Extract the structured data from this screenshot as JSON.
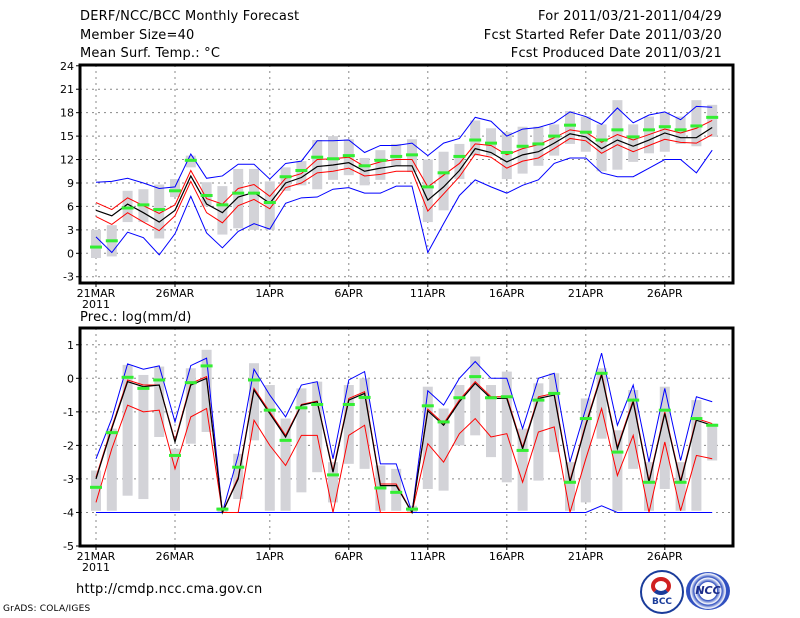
{
  "header": {
    "title": "DERF/NCC/BCC Monthly Forecast",
    "member_size": "Member Size=40",
    "variable": "Mean Surf. Temp.: °C",
    "period": "For 2011/03/21-2011/04/29",
    "refer_date": "Fcst Started Refer Date 2011/03/20",
    "produced_date": "Fcst Produced Date 2011/03/21"
  },
  "footer": {
    "url": "http://cmdp.ncc.cma.gov.cn",
    "credit": "GrADS: COLA/IGES",
    "logo_left": "BCC",
    "logo_right": "NCC"
  },
  "colors": {
    "mean": "#000000",
    "spread": "#ff0000",
    "extreme": "#0000ff",
    "obs": "#33ee33",
    "box": "#d3d3d8"
  },
  "chart_data": [
    {
      "type": "line",
      "title": "Mean Surf. Temp.: °C",
      "ylabel": "°C",
      "ylim": [
        -3.8,
        24.1
      ],
      "yticks": [
        "-3",
        "0",
        "3",
        "6",
        "9",
        "12",
        "15",
        "18",
        "21",
        "24"
      ],
      "xticks": [
        {
          "day": 0,
          "label": "21MAR",
          "year": "2011"
        },
        {
          "day": 5,
          "label": "26MAR"
        },
        {
          "day": 11,
          "label": "1APR"
        },
        {
          "day": 16,
          "label": "6APR"
        },
        {
          "day": 21,
          "label": "11APR"
        },
        {
          "day": 26,
          "label": "16APR"
        },
        {
          "day": 31,
          "label": "21APR"
        },
        {
          "day": 36,
          "label": "26APR"
        }
      ],
      "grid": true,
      "mean": [
        5.5,
        4.8,
        6.3,
        5.2,
        4.0,
        5.5,
        9.9,
        6.3,
        5.2,
        7.2,
        7.8,
        6.4,
        9.0,
        9.7,
        11.1,
        11.3,
        11.6,
        10.5,
        10.9,
        11.2,
        11.2,
        6.8,
        8.5,
        10.6,
        13.4,
        12.9,
        11.7,
        12.6,
        13.0,
        14.1,
        15.3,
        14.9,
        13.4,
        14.5,
        13.7,
        14.5,
        15.4,
        14.8,
        14.8,
        16.1
      ],
      "spread_upper": [
        6.5,
        5.6,
        7.1,
        6.1,
        5.1,
        6.2,
        10.6,
        7.0,
        6.3,
        8.3,
        8.8,
        7.3,
        9.6,
        10.2,
        12.0,
        12.1,
        12.3,
        11.1,
        11.7,
        12.0,
        12.0,
        8.5,
        10.0,
        11.5,
        14.0,
        13.8,
        12.6,
        13.4,
        13.9,
        14.8,
        15.8,
        15.5,
        14.2,
        15.2,
        14.5,
        15.2,
        15.9,
        15.4,
        16.0,
        17.0
      ],
      "spread_lower": [
        4.7,
        3.7,
        5.2,
        4.0,
        2.9,
        4.8,
        9.2,
        5.2,
        3.9,
        6.1,
        6.9,
        5.7,
        8.4,
        9.0,
        10.3,
        10.5,
        10.9,
        9.9,
        10.1,
        10.5,
        10.5,
        5.4,
        7.6,
        9.8,
        12.7,
        12.3,
        10.9,
        11.8,
        12.2,
        13.4,
        14.7,
        14.4,
        12.8,
        13.9,
        13.0,
        13.8,
        14.6,
        14.2,
        14.1,
        15.2
      ],
      "max": [
        9.1,
        9.2,
        9.6,
        9.0,
        8.3,
        8.5,
        12.7,
        9.6,
        9.9,
        11.4,
        11.4,
        9.5,
        11.5,
        11.8,
        14.4,
        14.4,
        14.5,
        12.9,
        13.8,
        13.8,
        14.1,
        12.5,
        14.1,
        14.7,
        17.4,
        16.9,
        15.0,
        15.9,
        16.1,
        16.7,
        18.1,
        17.5,
        16.5,
        18.6,
        16.7,
        17.7,
        18.1,
        17.1,
        18.8,
        18.7
      ],
      "min": [
        2.1,
        0.1,
        2.7,
        2.0,
        -0.2,
        2.5,
        7.3,
        2.6,
        0.7,
        2.8,
        3.8,
        3.1,
        6.4,
        7.1,
        7.2,
        8.2,
        8.4,
        7.7,
        7.7,
        8.6,
        8.6,
        0.1,
        3.8,
        7.4,
        9.4,
        8.5,
        7.7,
        8.7,
        9.4,
        11.5,
        12.2,
        12.2,
        10.3,
        9.8,
        9.8,
        10.9,
        12.0,
        12.0,
        10.3,
        13.2
      ],
      "observed": [
        0.8,
        1.6,
        5.8,
        6.2,
        5.6,
        8.0,
        11.9,
        7.4,
        6.2,
        7.7,
        7.7,
        6.5,
        9.8,
        10.6,
        12.3,
        12.1,
        12.5,
        11.2,
        11.9,
        12.4,
        12.6,
        8.5,
        10.3,
        12.4,
        14.5,
        14.1,
        12.9,
        13.7,
        14.0,
        15.0,
        16.4,
        15.5,
        14.5,
        15.8,
        14.9,
        15.8,
        16.2,
        15.8,
        16.3,
        17.4
      ],
      "box_low": [
        -0.6,
        -0.4,
        4.0,
        4.0,
        1.9,
        7.2,
        11.0,
        6.0,
        2.4,
        3.2,
        3.0,
        3.0,
        8.0,
        8.7,
        8.2,
        9.4,
        10.0,
        8.7,
        9.4,
        11.2,
        10.4,
        4.0,
        5.5,
        9.5,
        12.5,
        12.5,
        9.5,
        10.2,
        11.2,
        12.5,
        14.0,
        13.0,
        10.5,
        10.7,
        11.7,
        12.8,
        13.0,
        14.0,
        13.7,
        14.9
      ],
      "box_high": [
        3.0,
        3.6,
        8.0,
        8.2,
        8.8,
        9.5,
        12.5,
        9.1,
        8.6,
        10.8,
        10.8,
        9.2,
        11.0,
        11.8,
        14.5,
        15.0,
        14.6,
        12.2,
        13.2,
        14.0,
        14.6,
        12.0,
        13.0,
        14.0,
        17.0,
        16.0,
        15.5,
        16.2,
        16.2,
        16.5,
        18.2,
        17.5,
        16.5,
        19.6,
        16.5,
        17.5,
        18.0,
        17.5,
        19.6,
        19.0
      ]
    },
    {
      "type": "line",
      "title": "Prec.: log(mm/d)",
      "ylabel": "log(mm/d)",
      "ylim": [
        -5,
        1.5
      ],
      "yticks": [
        "-5",
        "-4",
        "-3",
        "-2",
        "-1",
        "0",
        "1"
      ],
      "xticks": [
        {
          "day": 0,
          "label": "21MAR",
          "year": "2011"
        },
        {
          "day": 5,
          "label": "26MAR"
        },
        {
          "day": 11,
          "label": "1APR"
        },
        {
          "day": 16,
          "label": "6APR"
        },
        {
          "day": 21,
          "label": "11APR"
        },
        {
          "day": 26,
          "label": "16APR"
        },
        {
          "day": 31,
          "label": "21APR"
        },
        {
          "day": 36,
          "label": "26APR"
        }
      ],
      "grid": true,
      "mean": [
        -3.0,
        -1.5,
        -0.1,
        -0.25,
        -0.2,
        -1.9,
        -0.2,
        0.0,
        -4.0,
        -3.0,
        -0.35,
        -1.05,
        -1.75,
        -0.8,
        -0.7,
        -2.8,
        -0.65,
        -0.45,
        -3.2,
        -3.2,
        -4.0,
        -0.97,
        -1.4,
        -0.7,
        -0.15,
        -0.6,
        -0.6,
        -2.1,
        -0.6,
        -0.5,
        -3.1,
        -1.4,
        0.1,
        -2.1,
        -0.7,
        -3.1,
        -1.05,
        -3.1,
        -1.25,
        -1.4
      ],
      "spread_upper": [
        -2.95,
        -1.45,
        -0.05,
        -0.2,
        -0.2,
        -1.85,
        -0.15,
        0.05,
        -4.0,
        -2.95,
        -0.3,
        -1.0,
        -1.7,
        -0.78,
        -0.68,
        -2.75,
        -0.6,
        -0.4,
        -3.15,
        -3.15,
        -4.0,
        -0.92,
        -1.35,
        -0.65,
        -0.1,
        -0.55,
        -0.55,
        -2.05,
        -0.55,
        -0.45,
        -3.05,
        -1.35,
        0.15,
        -2.05,
        -0.65,
        -3.05,
        -1.0,
        -3.05,
        -1.2,
        -1.35
      ],
      "spread_lower": [
        -3.7,
        -2.1,
        -0.8,
        -1.0,
        -0.95,
        -2.7,
        -1.15,
        -0.9,
        -4.0,
        -4.0,
        -1.25,
        -2.0,
        -2.6,
        -1.7,
        -1.7,
        -4.0,
        -1.7,
        -1.4,
        -4.0,
        -4.0,
        -4.0,
        -1.95,
        -2.5,
        -1.65,
        -1.2,
        -1.75,
        -1.65,
        -3.1,
        -1.6,
        -1.45,
        -4.0,
        -2.4,
        -0.9,
        -2.9,
        -1.7,
        -4.0,
        -1.9,
        -3.95,
        -2.3,
        -2.4
      ],
      "max": [
        -2.4,
        -1.2,
        0.43,
        0.27,
        0.37,
        -1.3,
        0.38,
        0.6,
        -4.0,
        -2.3,
        0.27,
        -0.5,
        -1.15,
        -0.2,
        -0.1,
        -2.4,
        -0.05,
        0.2,
        -2.55,
        -2.55,
        -4.0,
        -0.37,
        -0.8,
        0.0,
        0.5,
        0.0,
        0.0,
        -1.5,
        0.0,
        0.15,
        -2.5,
        -0.9,
        0.75,
        -1.4,
        -0.2,
        -2.5,
        -0.3,
        -2.45,
        -0.55,
        -0.7
      ],
      "min": [
        -4,
        -4,
        -4,
        -4,
        -4,
        -4,
        -4,
        -4,
        -4,
        -4,
        -4,
        -4,
        -4,
        -4,
        -4,
        -4,
        -4,
        -4,
        -4,
        -4,
        -4,
        -4,
        -4,
        -4,
        -4,
        -4,
        -4,
        -4,
        -4,
        -4,
        -4,
        -4,
        -3.8,
        -4,
        -4,
        -4,
        -4,
        -4,
        -4,
        -4
      ],
      "observed": [
        -3.25,
        -1.62,
        0.03,
        -0.3,
        -0.05,
        -2.3,
        -0.13,
        0.37,
        -3.9,
        -2.65,
        -0.05,
        -0.95,
        -1.85,
        -0.88,
        -0.78,
        -2.88,
        -0.78,
        -0.57,
        -3.27,
        -3.4,
        -3.9,
        -0.82,
        -1.3,
        -0.58,
        0.05,
        -0.58,
        -0.55,
        -2.15,
        -0.65,
        -0.45,
        -3.1,
        -1.2,
        0.15,
        -2.2,
        -0.65,
        -3.1,
        -0.95,
        -3.1,
        -1.2,
        -1.4
      ],
      "box_low": [
        -3.95,
        -3.95,
        -3.5,
        -3.6,
        -1.75,
        -3.95,
        -1.95,
        -1.6,
        -4.0,
        -3.6,
        -1.85,
        -3.95,
        -3.95,
        -3.4,
        -2.8,
        -3.7,
        -2.55,
        -2.7,
        -3.95,
        -3.95,
        -4.0,
        -3.3,
        -3.35,
        -2.0,
        -1.7,
        -2.35,
        -3.1,
        -3.95,
        -3.05,
        -2.2,
        -3.95,
        -3.7,
        -1.8,
        -3.95,
        -2.7,
        -3.95,
        -3.3,
        -3.95,
        -3.95,
        -2.45
      ],
      "box_high": [
        -2.75,
        -1.5,
        0.4,
        0.1,
        0.35,
        -2.1,
        0.3,
        0.85,
        -3.85,
        -2.25,
        0.45,
        -0.2,
        -1.2,
        -0.3,
        -0.1,
        -2.5,
        -0.2,
        0.0,
        -2.6,
        -2.7,
        -3.8,
        -0.25,
        -0.9,
        -0.2,
        0.65,
        -0.2,
        0.2,
        -1.5,
        -0.15,
        0.15,
        -2.5,
        -0.6,
        0.3,
        -1.55,
        -0.35,
        -2.5,
        -0.25,
        -2.5,
        -0.65,
        -1.35
      ]
    }
  ]
}
